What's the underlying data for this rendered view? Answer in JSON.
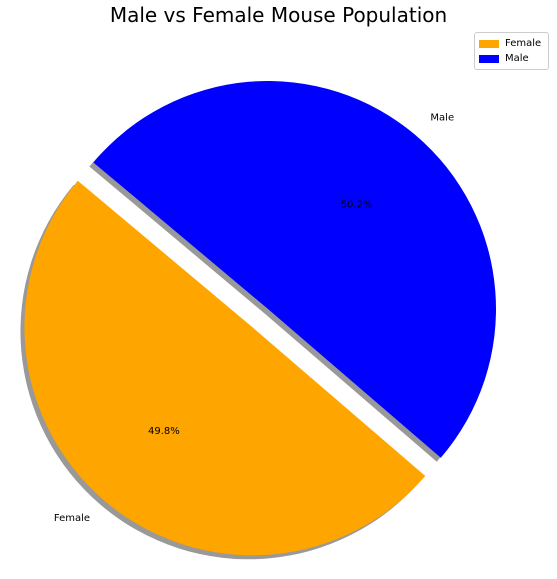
{
  "chart_data": {
    "type": "pie",
    "title": "Male vs Female Mouse Population",
    "slices": [
      {
        "label": "Female",
        "value": 49.8,
        "pct_label": "49.8%",
        "color": "#FFA500",
        "explode": true
      },
      {
        "label": "Male",
        "value": 50.2,
        "pct_label": "50.2%",
        "color": "#0000FF",
        "explode": false
      }
    ],
    "legend": {
      "position": "top-right",
      "entries": [
        "Female",
        "Male"
      ]
    },
    "shadow": true,
    "start_angle_deg": 140
  }
}
